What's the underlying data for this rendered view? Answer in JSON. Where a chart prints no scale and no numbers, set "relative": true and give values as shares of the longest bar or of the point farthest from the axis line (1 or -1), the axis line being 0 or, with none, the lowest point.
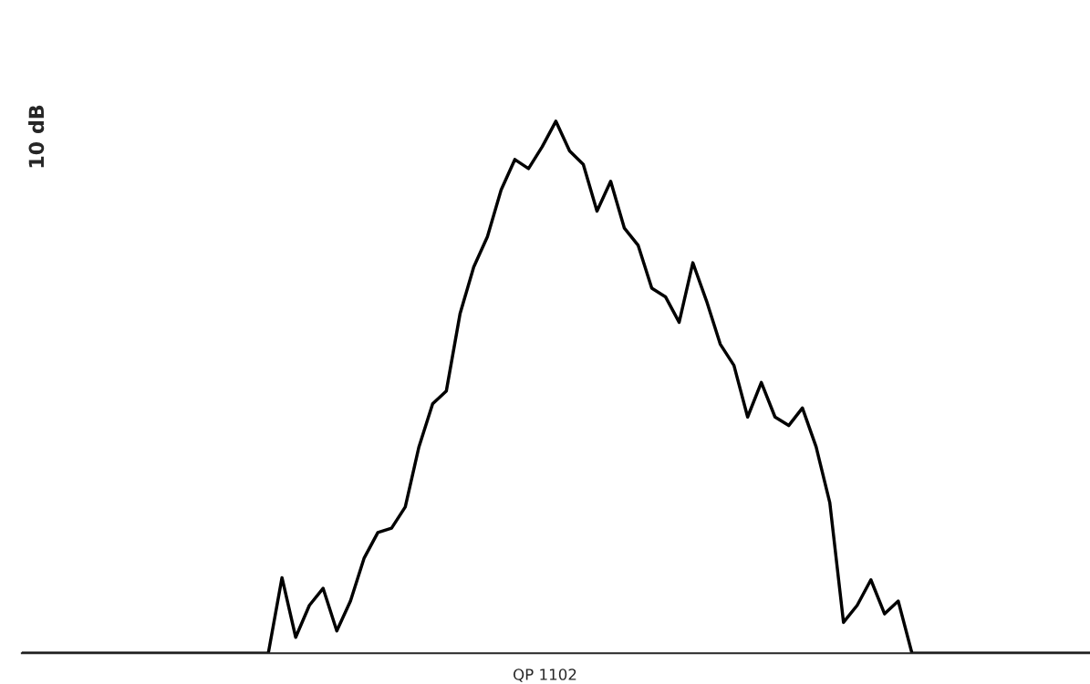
{
  "chart_data": {
    "type": "line",
    "relative": true,
    "categories": [
      null,
      null,
      null,
      null,
      null,
      null,
      null,
      null,
      null,
      null,
      null,
      null,
      null,
      null,
      null,
      null,
      null,
      null,
      null,
      null,
      null,
      null,
      null,
      null,
      null,
      null,
      null,
      null,
      null,
      null,
      null,
      null,
      null,
      null,
      null,
      null,
      null,
      null,
      null,
      null,
      null,
      null,
      null,
      null,
      null,
      null,
      null,
      null,
      null,
      null,
      null,
      null,
      null,
      null,
      null,
      null,
      null,
      null,
      null,
      null,
      null,
      null,
      null,
      null,
      null,
      null,
      null,
      null,
      null,
      null,
      null,
      null,
      null,
      null,
      null,
      null,
      null,
      null,
      null
    ],
    "series": [
      {
        "color": "#000000",
        "values": [
          0,
          0,
          0,
          0,
          0,
          0,
          0,
          0,
          0,
          0,
          0,
          0,
          0,
          0,
          0,
          0,
          0,
          0,
          0,
          0.142,
          0.03,
          0.09,
          0.122,
          0.042,
          0.098,
          0.179,
          0.227,
          0.235,
          0.275,
          0.388,
          0.469,
          0.493,
          0.638,
          0.726,
          0.783,
          0.871,
          0.928,
          0.911,
          0.952,
          1,
          0.944,
          0.919,
          0.831,
          0.887,
          0.799,
          0.767,
          0.686,
          0.67,
          0.622,
          0.734,
          0.662,
          0.581,
          0.541,
          0.444,
          0.509,
          0.444,
          0.428,
          0.461,
          0.388,
          0.283,
          0.058,
          0.09,
          0.138,
          0.074,
          0.098,
          0,
          0,
          0,
          0,
          0,
          0,
          0,
          0,
          0,
          0,
          0,
          0,
          0,
          0
        ]
      }
    ],
    "annotations": [
      "10 dB",
      "QP 1102"
    ]
  }
}
